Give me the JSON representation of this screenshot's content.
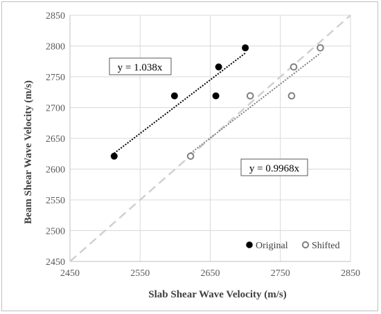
{
  "chart_data": {
    "type": "scatter",
    "xlabel": "Slab Shear Wave Velocity (m/s)",
    "ylabel": "Beam Shear Wave Velocity (m/s)",
    "xlim": [
      2450,
      2850
    ],
    "ylim": [
      2450,
      2850
    ],
    "x_ticks": [
      "2450",
      "2550",
      "2650",
      "2750",
      "2850"
    ],
    "y_ticks": [
      "2450",
      "2500",
      "2550",
      "2600",
      "2650",
      "2700",
      "2750",
      "2800",
      "2850"
    ],
    "grid": true,
    "legend_position": "bottom-right",
    "series": [
      {
        "name": "Original",
        "marker": "filled-circle",
        "color": "#000000",
        "points": [
          [
            2513,
            2621
          ],
          [
            2599,
            2719
          ],
          [
            2658,
            2719
          ],
          [
            2662,
            2766
          ],
          [
            2700,
            2797
          ]
        ]
      },
      {
        "name": "Shifted",
        "marker": "open-circle",
        "color": "#808080",
        "points": [
          [
            2622,
            2621
          ],
          [
            2707,
            2719
          ],
          [
            2766,
            2719
          ],
          [
            2769,
            2766
          ],
          [
            2807,
            2797
          ]
        ]
      }
    ],
    "trendlines": [
      {
        "series": "Original",
        "equation": "y = 1.038x",
        "slope": 1.038,
        "x_range": [
          2513,
          2700
        ],
        "color": "#000000",
        "style": "dotted"
      },
      {
        "series": "Shifted",
        "equation": "y = 0.9968x",
        "slope": 0.9968,
        "x_range": [
          2622,
          2807
        ],
        "color": "#7f7f7f",
        "style": "dotted"
      }
    ],
    "reference_line": {
      "style": "dashed",
      "color": "#d0d0d0",
      "x_range": [
        2450,
        2850
      ],
      "y_range": [
        2450,
        2850
      ]
    }
  }
}
